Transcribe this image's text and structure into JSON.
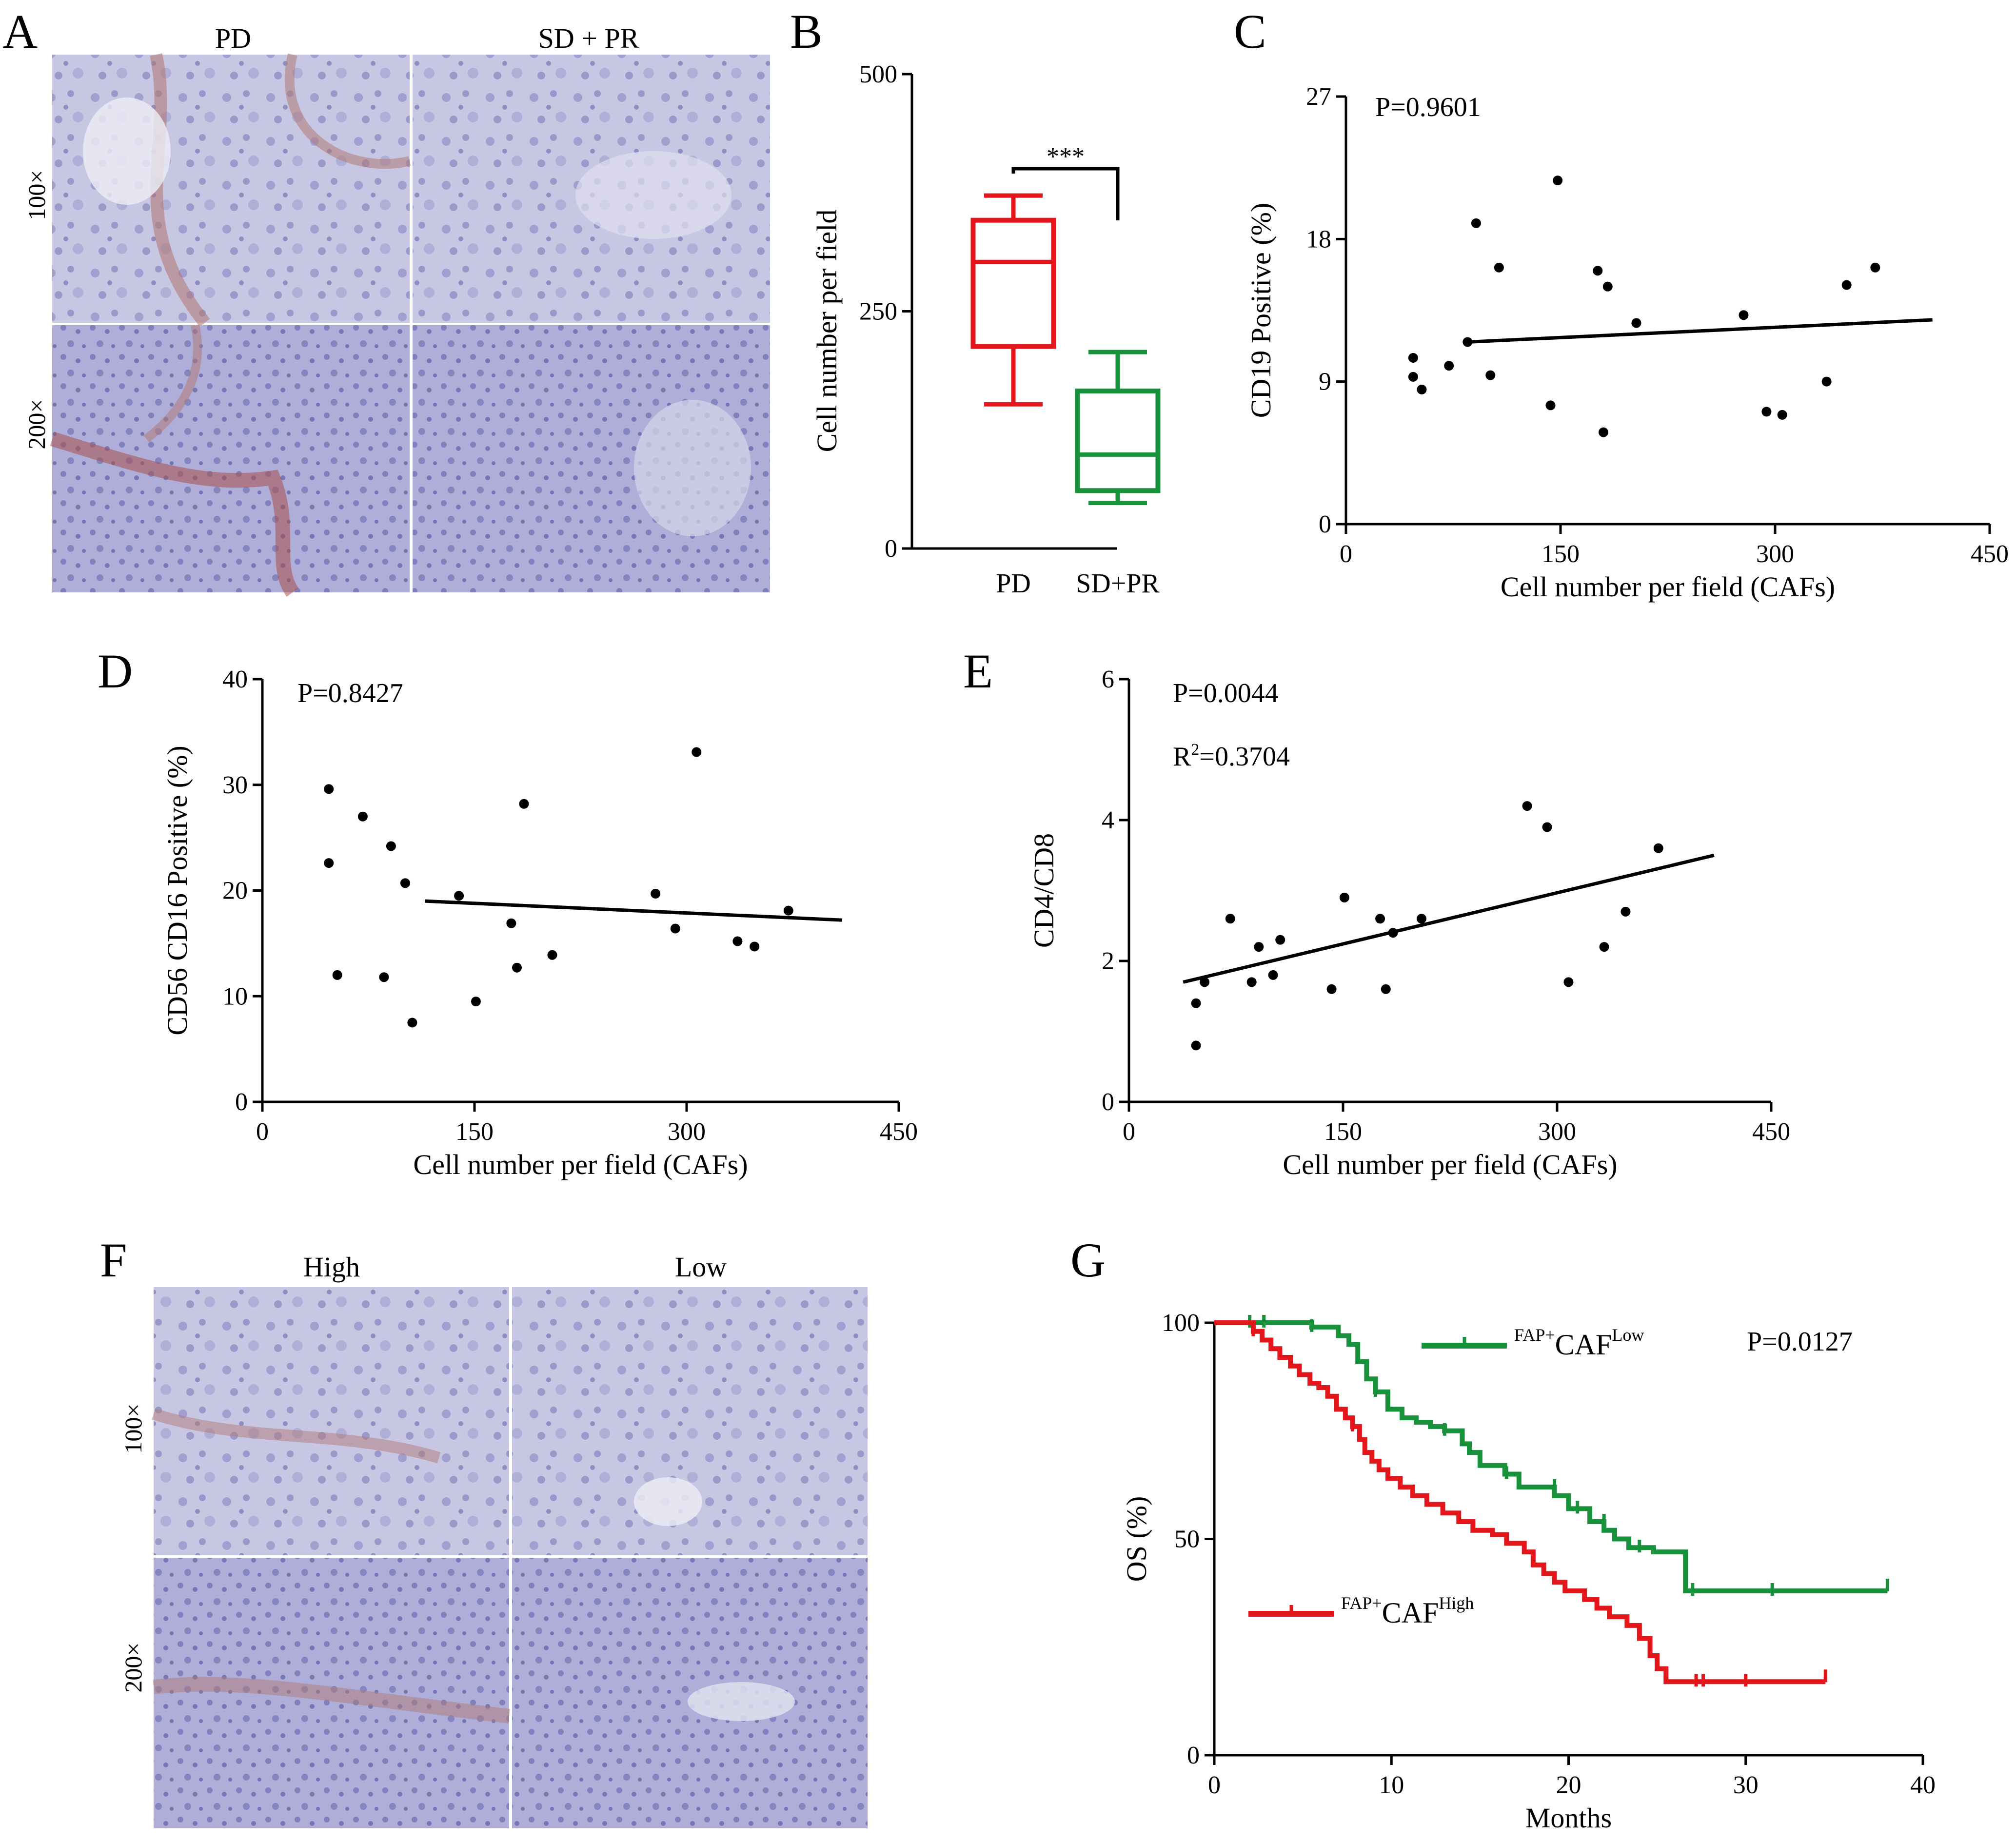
{
  "panels": {
    "A": {
      "letter": "A",
      "columns": [
        "PD",
        "SD + PR"
      ],
      "rows": [
        "100×",
        "200×"
      ]
    },
    "F": {
      "letter": "F",
      "columns": [
        "High",
        "Low"
      ],
      "rows": [
        "100×",
        "200×"
      ]
    }
  },
  "colors": {
    "pd": "#e3161b",
    "sdpr": "#17913a",
    "high": "#e3161b",
    "low": "#17913a",
    "axis": "#000000",
    "he_stain": "#7474b6",
    "stroma": "#b07a78"
  },
  "chart_data": [
    {
      "panel": "B",
      "type": "box",
      "categories": [
        "PD",
        "SD+PR"
      ],
      "ylabel": "Cell number per field",
      "ylim": [
        0,
        500
      ],
      "yticks": [
        0,
        250,
        500
      ],
      "boxes": [
        {
          "name": "PD",
          "min": 152,
          "q1": 213,
          "median": 302,
          "q3": 346,
          "max": 372,
          "color": "#e3161b"
        },
        {
          "name": "SD+PR",
          "min": 48,
          "q1": 61,
          "median": 99,
          "q3": 166,
          "max": 207,
          "color": "#17913a"
        }
      ],
      "significance": "***"
    },
    {
      "panel": "C",
      "type": "scatter",
      "xlabel": "Cell number per field (CAFs)",
      "ylabel": "CD19 Positive (%)",
      "xlim": [
        0,
        450
      ],
      "ylim": [
        0,
        27
      ],
      "xticks": [
        0,
        150,
        300,
        450
      ],
      "yticks": [
        0,
        9,
        18,
        27
      ],
      "annotations": [
        "P=0.9601"
      ],
      "points": [
        [
          47,
          10.5
        ],
        [
          47,
          9.3
        ],
        [
          53,
          8.5
        ],
        [
          72,
          10
        ],
        [
          85,
          11.5
        ],
        [
          91,
          19
        ],
        [
          101,
          9.4
        ],
        [
          107,
          16.2
        ],
        [
          143,
          7.5
        ],
        [
          148,
          21.7
        ],
        [
          176,
          16
        ],
        [
          183,
          15
        ],
        [
          203,
          12.7
        ],
        [
          278,
          13.2
        ],
        [
          294,
          7.1
        ],
        [
          305,
          6.9
        ],
        [
          336,
          9
        ],
        [
          350,
          15.1
        ],
        [
          370,
          16.2
        ],
        [
          180,
          5.8
        ]
      ],
      "fit": [
        [
          85,
          11.5
        ],
        [
          410,
          12.9
        ]
      ]
    },
    {
      "panel": "D",
      "type": "scatter",
      "xlabel": "Cell number per field (CAFs)",
      "ylabel": "CD56 CD16 Positive (%)",
      "xlim": [
        0,
        450
      ],
      "ylim": [
        0,
        40
      ],
      "xticks": [
        0,
        150,
        300,
        450
      ],
      "yticks": [
        0,
        10,
        20,
        30,
        40
      ],
      "annotations": [
        "P=0.8427"
      ],
      "points": [
        [
          47,
          29.6
        ],
        [
          47,
          22.6
        ],
        [
          53,
          12
        ],
        [
          71,
          27
        ],
        [
          86,
          11.8
        ],
        [
          91,
          24.2
        ],
        [
          101,
          20.7
        ],
        [
          106,
          7.5
        ],
        [
          139,
          19.5
        ],
        [
          151,
          9.5
        ],
        [
          176,
          16.9
        ],
        [
          180,
          12.7
        ],
        [
          185,
          28.2
        ],
        [
          205,
          13.9
        ],
        [
          278,
          19.7
        ],
        [
          292,
          16.4
        ],
        [
          307,
          33.1
        ],
        [
          336,
          15.2
        ],
        [
          348,
          14.7
        ],
        [
          372,
          18.1
        ]
      ],
      "fit": [
        [
          115,
          19
        ],
        [
          410,
          17.2
        ]
      ]
    },
    {
      "panel": "E",
      "type": "scatter",
      "xlabel": "Cell number per field (CAFs)",
      "ylabel": "CD4/CD8",
      "xlim": [
        0,
        450
      ],
      "ylim": [
        0,
        6
      ],
      "xticks": [
        0,
        150,
        300,
        450
      ],
      "yticks": [
        0,
        2,
        4,
        6
      ],
      "annotations": [
        "P=0.0044",
        "R²=0.3704"
      ],
      "points": [
        [
          47,
          1.4
        ],
        [
          47,
          0.8
        ],
        [
          53,
          1.7
        ],
        [
          71,
          2.6
        ],
        [
          86,
          1.7
        ],
        [
          91,
          2.2
        ],
        [
          101,
          1.8
        ],
        [
          106,
          2.3
        ],
        [
          142,
          1.6
        ],
        [
          151,
          2.9
        ],
        [
          176,
          2.6
        ],
        [
          180,
          1.6
        ],
        [
          185,
          2.4
        ],
        [
          205,
          2.6
        ],
        [
          279,
          4.2
        ],
        [
          293,
          3.9
        ],
        [
          308,
          1.7
        ],
        [
          333,
          2.2
        ],
        [
          348,
          2.7
        ],
        [
          371,
          3.6
        ]
      ],
      "fit": [
        [
          38,
          1.7
        ],
        [
          410,
          3.5
        ]
      ]
    },
    {
      "panel": "G",
      "type": "line",
      "subtype": "kaplan-meier",
      "xlabel": "Months",
      "ylabel": "OS (%)",
      "xlim": [
        0,
        40
      ],
      "ylim": [
        0,
        100
      ],
      "xticks": [
        0,
        10,
        20,
        30,
        40
      ],
      "yticks": [
        0,
        50,
        100
      ],
      "annotations": [
        "P=0.0127"
      ],
      "series": [
        {
          "name": "FAP+CAFLow",
          "legend": {
            "sup1": "FAP+",
            "base": "CAF",
            "sup2": "Low"
          },
          "color": "#17913a",
          "steps": [
            [
              0,
              100
            ],
            [
              5.5,
              99
            ],
            [
              7,
              97
            ],
            [
              7.6,
              95
            ],
            [
              8.1,
              91
            ],
            [
              8.6,
              87
            ],
            [
              9.1,
              84
            ],
            [
              9.8,
              80
            ],
            [
              10.6,
              78
            ],
            [
              11.4,
              77
            ],
            [
              12.2,
              76
            ],
            [
              13,
              75
            ],
            [
              14,
              72
            ],
            [
              14.4,
              70
            ],
            [
              15,
              67
            ],
            [
              16.4,
              65
            ],
            [
              17.2,
              62
            ],
            [
              19.2,
              60
            ],
            [
              20,
              57
            ],
            [
              21.2,
              54
            ],
            [
              22,
              52
            ],
            [
              22.6,
              50
            ],
            [
              23.4,
              48
            ],
            [
              24.8,
              47
            ],
            [
              26.6,
              47
            ],
            [
              26.6,
              38
            ],
            [
              38,
              38
            ]
          ],
          "censors": [
            [
              2,
              100
            ],
            [
              2.8,
              100
            ],
            [
              5.5,
              99
            ],
            [
              9.1,
              84
            ],
            [
              13,
              75
            ],
            [
              16.5,
              65
            ],
            [
              19.2,
              62
            ],
            [
              20.5,
              57
            ],
            [
              22,
              54
            ],
            [
              24,
              48
            ],
            [
              27,
              38
            ],
            [
              31.5,
              38
            ],
            [
              38,
              39
            ]
          ]
        },
        {
          "name": "FAP+CAFHigh",
          "legend": {
            "sup1": "FAP+",
            "base": "CAF",
            "sup2": "High"
          },
          "color": "#e3161b",
          "steps": [
            [
              0,
              100
            ],
            [
              2.2,
              98
            ],
            [
              2.7,
              96
            ],
            [
              3.2,
              94
            ],
            [
              3.7,
              92
            ],
            [
              4.3,
              90
            ],
            [
              4.8,
              88
            ],
            [
              5.4,
              86
            ],
            [
              5.9,
              85
            ],
            [
              6.4,
              83
            ],
            [
              6.9,
              80
            ],
            [
              7.4,
              78
            ],
            [
              7.8,
              76
            ],
            [
              8.2,
              73
            ],
            [
              8.5,
              70
            ],
            [
              8.9,
              68
            ],
            [
              9.3,
              66
            ],
            [
              9.8,
              64
            ],
            [
              10.5,
              62
            ],
            [
              11.2,
              60
            ],
            [
              12,
              58
            ],
            [
              12.9,
              56
            ],
            [
              13.8,
              54
            ],
            [
              14.6,
              52
            ],
            [
              15.7,
              51
            ],
            [
              16.5,
              49
            ],
            [
              17.5,
              47
            ],
            [
              18,
              44
            ],
            [
              18.6,
              42
            ],
            [
              19.2,
              40
            ],
            [
              19.8,
              38
            ],
            [
              20.9,
              36
            ],
            [
              21.6,
              34
            ],
            [
              22.3,
              32
            ],
            [
              23.3,
              30
            ],
            [
              24,
              27
            ],
            [
              24.6,
              23
            ],
            [
              25,
              20
            ],
            [
              25.5,
              17
            ],
            [
              34.5,
              17
            ]
          ],
          "censors": [
            [
              2.2,
              98
            ],
            [
              7.8,
              76
            ],
            [
              27.2,
              17
            ],
            [
              27.6,
              17
            ],
            [
              30,
              17
            ],
            [
              34.5,
              18
            ]
          ]
        }
      ]
    }
  ]
}
